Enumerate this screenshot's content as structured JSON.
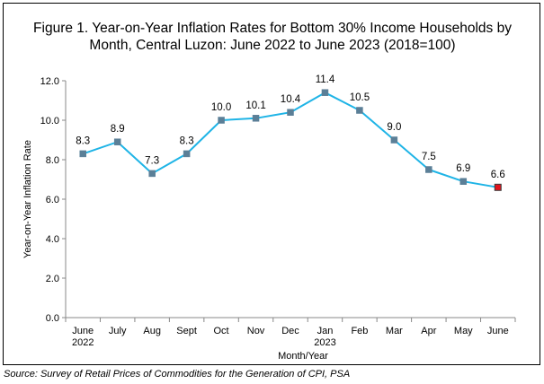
{
  "chart_data": {
    "type": "line",
    "title_line1": "Figure 1.  Year-on-Year Inflation Rates for Bottom 30% Income Households by",
    "title_line2": "Month, Central Luzon: June 2022 to June 2023 (2018=100)",
    "xlabel": "Month/Year",
    "ylabel": "Year-on-Year Inflation Rate",
    "ylim": [
      0,
      12
    ],
    "yticks": [
      "0.0",
      "2.0",
      "4.0",
      "6.0",
      "8.0",
      "10.0",
      "12.0"
    ],
    "categories": [
      {
        "month": "June",
        "year": "2022"
      },
      {
        "month": "July",
        "year": ""
      },
      {
        "month": "Aug",
        "year": ""
      },
      {
        "month": "Sept",
        "year": ""
      },
      {
        "month": "Oct",
        "year": ""
      },
      {
        "month": "Nov",
        "year": ""
      },
      {
        "month": "Dec",
        "year": ""
      },
      {
        "month": "Jan",
        "year": "2023"
      },
      {
        "month": "Feb",
        "year": ""
      },
      {
        "month": "Mar",
        "year": ""
      },
      {
        "month": "Apr",
        "year": ""
      },
      {
        "month": "May",
        "year": ""
      },
      {
        "month": "June",
        "year": ""
      }
    ],
    "series": [
      {
        "values": [
          8.3,
          8.9,
          7.3,
          8.3,
          10.0,
          10.1,
          10.4,
          11.4,
          10.5,
          9.0,
          7.5,
          6.9,
          6.6
        ],
        "labels": [
          "8.3",
          "8.9",
          "7.3",
          "8.3",
          "10.0",
          "10.1",
          "10.4",
          "11.4",
          "10.5",
          "9.0",
          "7.5",
          "6.9",
          "6.6"
        ]
      }
    ],
    "colors": {
      "line": "#1fb4e6",
      "marker": "#5b7f97",
      "last_marker": "#e0141e",
      "axis": "#888888"
    },
    "grid": false,
    "legend": "none"
  },
  "source": "Source: Survey of Retail Prices of Commodities for the Generation of CPI, PSA"
}
